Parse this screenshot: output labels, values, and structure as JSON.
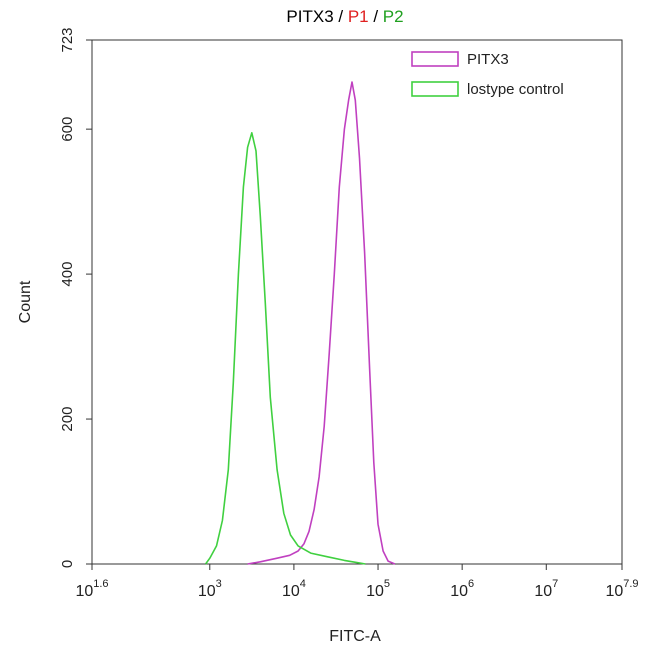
{
  "chart_data": {
    "type": "line",
    "title_parts": [
      {
        "text": "PITX3",
        "color": "#000000"
      },
      {
        "text": " / ",
        "color": "#000000"
      },
      {
        "text": "P1",
        "color": "#e02020"
      },
      {
        "text": " / ",
        "color": "#000000"
      },
      {
        "text": "P2",
        "color": "#20a020"
      }
    ],
    "xlabel": "FITC-A",
    "ylabel": "Count",
    "xscale": "log10",
    "xlim": [
      1.6,
      7.9
    ],
    "ylim": [
      0,
      723
    ],
    "x_ticks": [
      {
        "exp": 1.6,
        "base": "10",
        "sup": "1.6"
      },
      {
        "exp": 3,
        "base": "10",
        "sup": "3"
      },
      {
        "exp": 4,
        "base": "10",
        "sup": "4"
      },
      {
        "exp": 5,
        "base": "10",
        "sup": "5"
      },
      {
        "exp": 6,
        "base": "10",
        "sup": "6"
      },
      {
        "exp": 7,
        "base": "10",
        "sup": "7"
      },
      {
        "exp": 7.9,
        "base": "10",
        "sup": "7.9"
      }
    ],
    "y_ticks": [
      {
        "value": 0,
        "label": "0"
      },
      {
        "value": 200,
        "label": "200"
      },
      {
        "value": 400,
        "label": "400"
      },
      {
        "value": 600,
        "label": "600"
      },
      {
        "value": 723,
        "label": "723"
      }
    ],
    "grid": false,
    "legend": {
      "position": "top-right",
      "entries": [
        {
          "name": "PITX3",
          "color": "#c040c0"
        },
        {
          "name": "lostype control",
          "color": "#40d040"
        }
      ]
    },
    "series": [
      {
        "name": "PITX3",
        "color": "#c040c0",
        "points": [
          [
            3.45,
            0
          ],
          [
            3.6,
            3
          ],
          [
            3.8,
            8
          ],
          [
            3.95,
            12
          ],
          [
            4.05,
            18
          ],
          [
            4.12,
            28
          ],
          [
            4.18,
            45
          ],
          [
            4.24,
            75
          ],
          [
            4.3,
            120
          ],
          [
            4.36,
            190
          ],
          [
            4.42,
            290
          ],
          [
            4.48,
            400
          ],
          [
            4.54,
            520
          ],
          [
            4.6,
            600
          ],
          [
            4.65,
            640
          ],
          [
            4.69,
            665
          ],
          [
            4.73,
            640
          ],
          [
            4.78,
            560
          ],
          [
            4.84,
            430
          ],
          [
            4.9,
            270
          ],
          [
            4.95,
            140
          ],
          [
            5.0,
            55
          ],
          [
            5.06,
            18
          ],
          [
            5.12,
            4
          ],
          [
            5.2,
            0
          ]
        ]
      },
      {
        "name": "lostype control",
        "color": "#40d040",
        "points": [
          [
            2.95,
            0
          ],
          [
            3.0,
            8
          ],
          [
            3.08,
            25
          ],
          [
            3.15,
            60
          ],
          [
            3.22,
            130
          ],
          [
            3.28,
            250
          ],
          [
            3.34,
            400
          ],
          [
            3.4,
            520
          ],
          [
            3.45,
            575
          ],
          [
            3.5,
            595
          ],
          [
            3.55,
            570
          ],
          [
            3.6,
            480
          ],
          [
            3.66,
            360
          ],
          [
            3.72,
            230
          ],
          [
            3.8,
            130
          ],
          [
            3.88,
            70
          ],
          [
            3.96,
            40
          ],
          [
            4.05,
            25
          ],
          [
            4.2,
            15
          ],
          [
            4.4,
            10
          ],
          [
            4.6,
            5
          ],
          [
            4.75,
            2
          ],
          [
            4.85,
            0
          ]
        ]
      }
    ]
  }
}
